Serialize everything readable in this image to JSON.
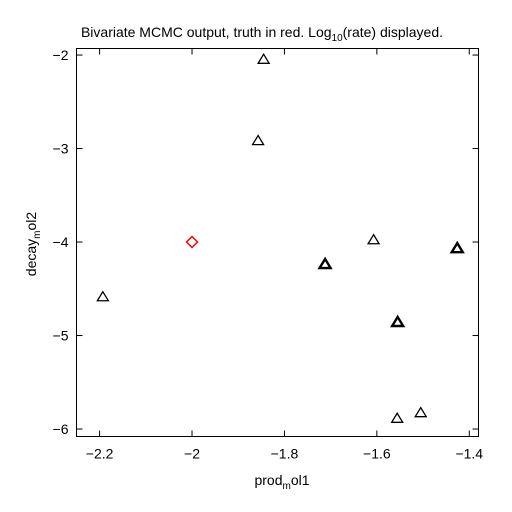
{
  "chart_data": {
    "type": "scatter",
    "title": {
      "part1": "Bivariate MCMC output, truth in red. Log",
      "sub": "10",
      "part2": "(rate) displayed."
    },
    "xlabel": {
      "pre": "prod",
      "sub": "m",
      "post": "ol1"
    },
    "ylabel": {
      "pre": "decay",
      "sub": "m",
      "post": "ol2"
    },
    "xlim": [
      -2.25,
      -1.38
    ],
    "ylim": [
      -6.08,
      -1.93
    ],
    "xticks": [
      -2.2,
      -2.0,
      -1.8,
      -1.6,
      -1.4
    ],
    "xtick_labels": [
      "−2.2",
      "−2",
      "−1.8",
      "−1.6",
      "−1.4"
    ],
    "yticks": [
      -2,
      -3,
      -4,
      -5,
      -6
    ],
    "ytick_labels": [
      "−2",
      "−3",
      "−4",
      "−5",
      "−6"
    ],
    "samples": [
      {
        "x": -1.845,
        "y": -2.05,
        "bold": false
      },
      {
        "x": -1.857,
        "y": -2.92,
        "bold": false
      },
      {
        "x": -2.193,
        "y": -4.59,
        "bold": false
      },
      {
        "x": -1.712,
        "y": -4.24,
        "bold": true
      },
      {
        "x": -1.607,
        "y": -3.98,
        "bold": false
      },
      {
        "x": -1.426,
        "y": -4.07,
        "bold": true
      },
      {
        "x": -1.555,
        "y": -4.86,
        "bold": true
      },
      {
        "x": -1.556,
        "y": -5.89,
        "bold": false
      },
      {
        "x": -1.505,
        "y": -5.83,
        "bold": false
      }
    ],
    "truth": {
      "x": -2.0,
      "y": -4.0
    },
    "colors": {
      "samples": "#000000",
      "truth": "#e00000"
    }
  }
}
